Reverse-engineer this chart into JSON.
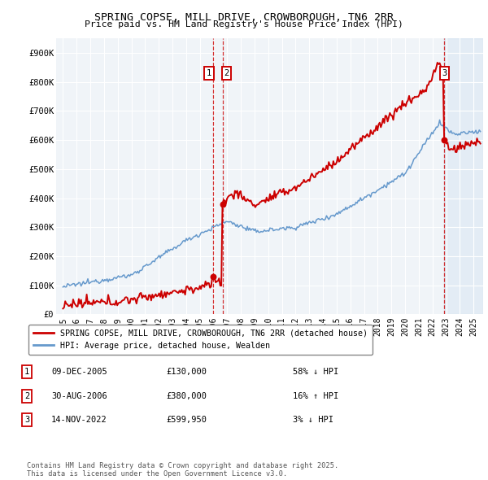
{
  "title": "SPRING COPSE, MILL DRIVE, CROWBOROUGH, TN6 2RR",
  "subtitle": "Price paid vs. HM Land Registry's House Price Index (HPI)",
  "legend_entries": [
    "SPRING COPSE, MILL DRIVE, CROWBOROUGH, TN6 2RR (detached house)",
    "HPI: Average price, detached house, Wealden"
  ],
  "transactions": [
    {
      "num": 1,
      "date": "09-DEC-2005",
      "price": "£130,000",
      "pct": "58%",
      "dir": "↓",
      "rel": "HPI"
    },
    {
      "num": 2,
      "date": "30-AUG-2006",
      "price": "£380,000",
      "pct": "16%",
      "dir": "↑",
      "rel": "HPI"
    },
    {
      "num": 3,
      "date": "14-NOV-2022",
      "price": "£599,950",
      "pct": "3%",
      "dir": "↓",
      "rel": "HPI"
    }
  ],
  "footer": "Contains HM Land Registry data © Crown copyright and database right 2025.\nThis data is licensed under the Open Government Licence v3.0.",
  "ylim": [
    0,
    950000
  ],
  "yticks": [
    0,
    100000,
    200000,
    300000,
    400000,
    500000,
    600000,
    700000,
    800000,
    900000
  ],
  "ytick_labels": [
    "£0",
    "£100K",
    "£200K",
    "£300K",
    "£400K",
    "£500K",
    "£600K",
    "£700K",
    "£800K",
    "£900K"
  ],
  "red_color": "#cc0000",
  "blue_color": "#6699cc",
  "bg_color": "#ffffff",
  "plot_bg": "#f0f4f8",
  "grid_color": "#ffffff",
  "vline1_x": 2005.94,
  "vline2_x": 2006.66,
  "vline3_x": 2022.87,
  "tx1_x": 2005.94,
  "tx1_y": 130000,
  "tx2_x": 2006.66,
  "tx2_y": 380000,
  "tx3_x": 2022.87,
  "tx3_y": 599950,
  "shade_start": 2022.87,
  "shade_end": 2025.7,
  "xlim_left": 1994.5,
  "xlim_right": 2025.7
}
